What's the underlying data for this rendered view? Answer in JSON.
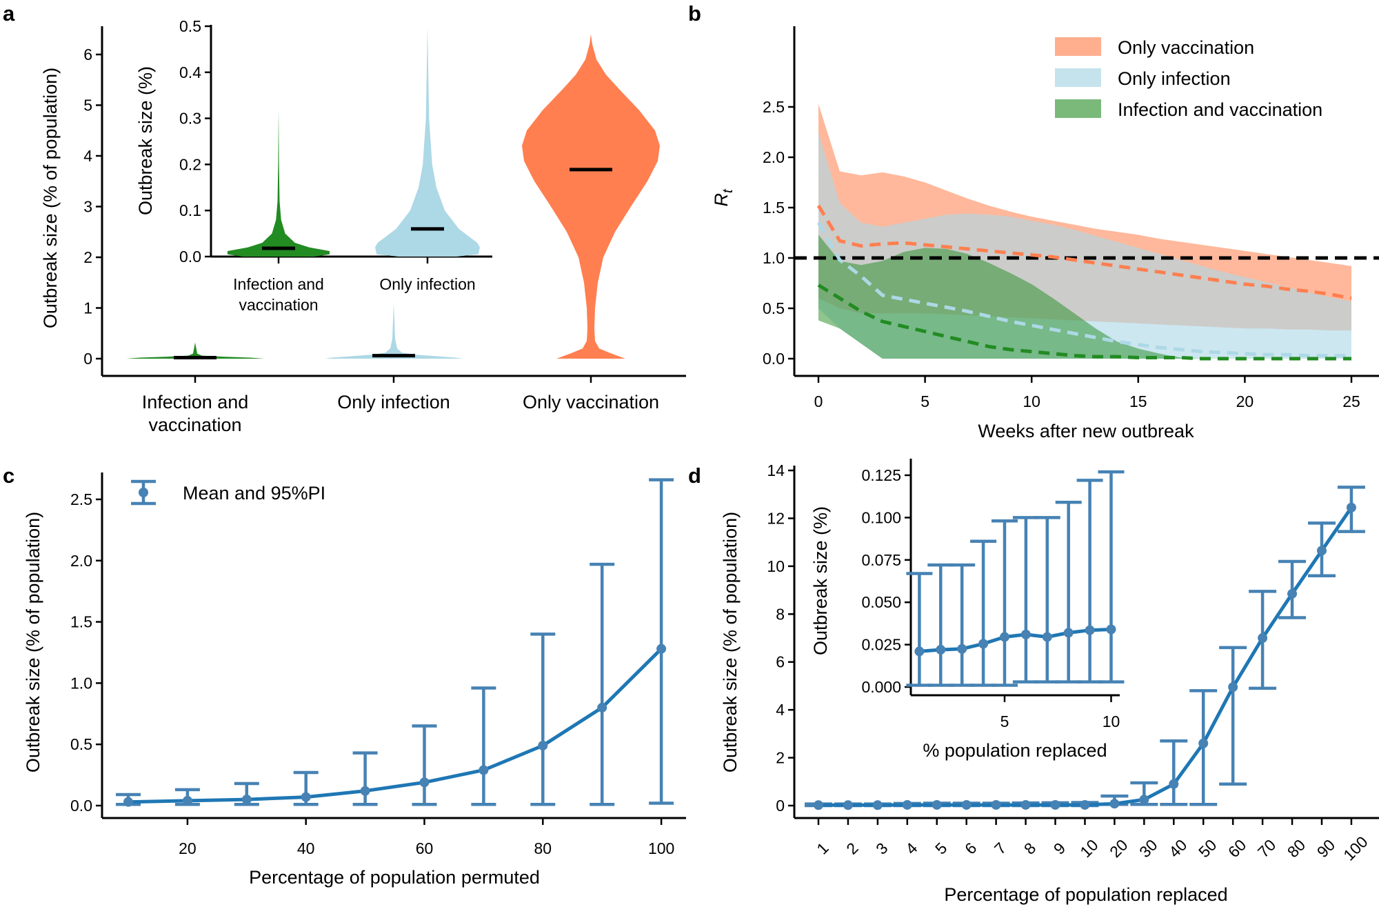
{
  "chart_data": [
    {
      "panel": "a",
      "type": "violin",
      "ylabel": "Outbreak size (% of population)",
      "categories": [
        [
          "Infection and",
          "vaccination"
        ],
        [
          "Only infection"
        ],
        [
          "Only vaccination"
        ]
      ],
      "yticks": [
        0,
        1,
        2,
        3,
        4,
        5,
        6
      ],
      "yticklabels": [
        "0",
        "1",
        "2",
        "3",
        "4",
        "5",
        "6"
      ],
      "ylim": [
        0,
        6.6
      ],
      "colors": [
        "#228b22",
        "#add8e6",
        "#ff7f50"
      ],
      "means": [
        0.02,
        0.06,
        3.73
      ],
      "density_profiles": [
        [
          [
            0,
            1
          ],
          [
            0.02,
            0.8
          ],
          [
            0.04,
            0.4
          ],
          [
            0.06,
            0.1
          ],
          [
            0.1,
            0.03
          ],
          [
            0.32,
            0
          ]
        ],
        [
          [
            0,
            1
          ],
          [
            0.02,
            0.9
          ],
          [
            0.05,
            0.6
          ],
          [
            0.08,
            0.3
          ],
          [
            0.12,
            0.12
          ],
          [
            0.2,
            0.05
          ],
          [
            0.4,
            0.02
          ],
          [
            1.1,
            0
          ]
        ],
        [
          [
            0,
            0.5
          ],
          [
            0.1,
            0.3
          ],
          [
            0.2,
            0.12
          ],
          [
            0.35,
            0.06
          ],
          [
            0.6,
            0.05
          ],
          [
            1,
            0.06
          ],
          [
            1.5,
            0.1
          ],
          [
            2,
            0.18
          ],
          [
            2.5,
            0.35
          ],
          [
            3,
            0.58
          ],
          [
            3.5,
            0.82
          ],
          [
            3.9,
            0.97
          ],
          [
            4.2,
            1
          ],
          [
            4.5,
            0.93
          ],
          [
            4.9,
            0.7
          ],
          [
            5.3,
            0.42
          ],
          [
            5.6,
            0.22
          ],
          [
            5.9,
            0.08
          ],
          [
            6.2,
            0.02
          ],
          [
            6.4,
            0
          ]
        ]
      ],
      "inset": {
        "type": "violin",
        "ylabel": "Outbreak size (%)",
        "categories": [
          [
            "Infection and",
            "vaccination"
          ],
          [
            "Only infection"
          ]
        ],
        "yticks": [
          0,
          0.1,
          0.2,
          0.3,
          0.4,
          0.5
        ],
        "yticklabels": [
          "0.0",
          "0.1",
          "0.2",
          "0.3",
          "0.4",
          "0.5"
        ],
        "ylim": [
          0,
          0.5
        ],
        "colors": [
          "#228b22",
          "#add8e6"
        ],
        "means": [
          0.018,
          0.06
        ],
        "density_profiles": [
          [
            [
              0,
              0.7
            ],
            [
              0.005,
              1
            ],
            [
              0.012,
              1
            ],
            [
              0.02,
              0.6
            ],
            [
              0.03,
              0.32
            ],
            [
              0.05,
              0.13
            ],
            [
              0.08,
              0.05
            ],
            [
              0.12,
              0.02
            ],
            [
              0.2,
              0.008
            ],
            [
              0.32,
              0
            ]
          ],
          [
            [
              0,
              0.55
            ],
            [
              0.005,
              0.97
            ],
            [
              0.02,
              1
            ],
            [
              0.03,
              0.95
            ],
            [
              0.06,
              0.6
            ],
            [
              0.1,
              0.33
            ],
            [
              0.15,
              0.17
            ],
            [
              0.2,
              0.09
            ],
            [
              0.3,
              0.03
            ],
            [
              0.5,
              0
            ]
          ]
        ]
      }
    },
    {
      "panel": "b",
      "type": "area",
      "xlabel": "Weeks after new outbreak",
      "ylabel": "R",
      "ylabel_sub": "t",
      "xticks": [
        0,
        5,
        10,
        15,
        20,
        25
      ],
      "xticklabels": [
        "0",
        "5",
        "10",
        "15",
        "20",
        "25"
      ],
      "yticks": [
        0,
        0.5,
        1,
        1.5,
        2,
        2.5
      ],
      "yticklabels": [
        "0.0",
        "0.5",
        "1.0",
        "1.5",
        "2.0",
        "2.5"
      ],
      "xlim": [
        -1.5,
        26.5
      ],
      "ylim": [
        -0.1,
        2.6
      ],
      "reference_line": 1.0,
      "legend_position": "top-right",
      "x": [
        0,
        1,
        2,
        3,
        4,
        5,
        6,
        7,
        8,
        9,
        10,
        11,
        12,
        13,
        14,
        15,
        16,
        17,
        18,
        19,
        20,
        21,
        22,
        23,
        24,
        25
      ],
      "series": [
        {
          "name": "Only vaccination",
          "color": "#ffa07a",
          "line_color": "#ff7f50",
          "mean": [
            1.52,
            1.17,
            1.12,
            1.14,
            1.15,
            1.13,
            1.11,
            1.09,
            1.07,
            1.05,
            1.03,
            1.01,
            0.98,
            0.95,
            0.92,
            0.89,
            0.86,
            0.83,
            0.8,
            0.77,
            0.74,
            0.72,
            0.69,
            0.67,
            0.64,
            0.6
          ],
          "upper": [
            2.53,
            1.86,
            1.82,
            1.85,
            1.81,
            1.75,
            1.67,
            1.59,
            1.52,
            1.46,
            1.41,
            1.37,
            1.33,
            1.29,
            1.26,
            1.23,
            1.19,
            1.16,
            1.13,
            1.1,
            1.07,
            1.04,
            1.01,
            0.98,
            0.95,
            0.92
          ],
          "lower": [
            0.6,
            0.5,
            0.45,
            0.45,
            0.45,
            0.45,
            0.44,
            0.43,
            0.42,
            0.41,
            0.4,
            0.39,
            0.38,
            0.37,
            0.36,
            0.35,
            0.34,
            0.33,
            0.32,
            0.31,
            0.3,
            0.3,
            0.29,
            0.29,
            0.28,
            0.28
          ]
        },
        {
          "name": "Only infection",
          "color": "#add8e6",
          "line_color": "#add8e6",
          "mean": [
            1.35,
            0.98,
            0.82,
            0.63,
            0.59,
            0.55,
            0.51,
            0.47,
            0.42,
            0.37,
            0.33,
            0.29,
            0.25,
            0.21,
            0.17,
            0.14,
            0.11,
            0.09,
            0.07,
            0.06,
            0.05,
            0.04,
            0.04,
            0.03,
            0.03,
            0.03
          ],
          "upper": [
            2.25,
            1.55,
            1.35,
            1.31,
            1.35,
            1.39,
            1.43,
            1.44,
            1.43,
            1.41,
            1.37,
            1.33,
            1.28,
            1.22,
            1.16,
            1.1,
            1.04,
            0.98,
            0.92,
            0.86,
            0.81,
            0.76,
            0.71,
            0.66,
            0.61,
            0.57
          ],
          "lower": [
            0.5,
            0.3,
            0.15,
            0,
            0,
            0,
            0,
            0,
            0,
            0,
            0,
            0,
            0,
            0,
            0,
            0,
            0,
            0,
            0,
            0,
            0,
            0,
            0,
            0,
            0,
            0
          ]
        },
        {
          "name": "Infection and vaccination",
          "color": "#228b22",
          "line_color": "#228b22",
          "mean": [
            0.73,
            0.6,
            0.47,
            0.37,
            0.32,
            0.27,
            0.22,
            0.17,
            0.12,
            0.09,
            0.07,
            0.05,
            0.03,
            0.02,
            0.02,
            0.01,
            0.01,
            0.01,
            0,
            0,
            0,
            0,
            0,
            0,
            0,
            0
          ],
          "upper": [
            1.23,
            0.97,
            0.93,
            0.97,
            1.06,
            1.1,
            1.09,
            1.04,
            0.95,
            0.85,
            0.74,
            0.6,
            0.45,
            0.3,
            0.17,
            0.1,
            0.05,
            0.01,
            0,
            0,
            0,
            0,
            0,
            0,
            0,
            0
          ],
          "lower": [
            0.38,
            0.3,
            0.15,
            0,
            0,
            0,
            0,
            0,
            0,
            0,
            0,
            0,
            0,
            0,
            0,
            0,
            0,
            0,
            0,
            0,
            0,
            0,
            0,
            0,
            0,
            0
          ]
        }
      ]
    },
    {
      "panel": "c",
      "type": "line",
      "xlabel": "Percentage of population permuted",
      "ylabel": "Outbreak size (% of population)",
      "legend": "Mean and 95%PI",
      "legend_position": "top-left",
      "color": "#4682b4",
      "line_color": "#1f77b4",
      "xticks": [
        20,
        40,
        60,
        80,
        100
      ],
      "xticklabels": [
        "20",
        "40",
        "60",
        "80",
        "100"
      ],
      "yticks": [
        0,
        0.5,
        1,
        1.5,
        2,
        2.5
      ],
      "yticklabels": [
        "0.0",
        "0.5",
        "1.0",
        "1.5",
        "2.0",
        "2.5"
      ],
      "x": [
        10,
        20,
        30,
        40,
        50,
        60,
        70,
        80,
        90,
        100
      ],
      "mean": [
        0.03,
        0.04,
        0.05,
        0.07,
        0.12,
        0.19,
        0.29,
        0.49,
        0.8,
        1.28
      ],
      "upper": [
        0.09,
        0.13,
        0.18,
        0.27,
        0.43,
        0.65,
        0.96,
        1.4,
        1.97,
        2.66
      ],
      "lower": [
        0.01,
        0.01,
        0.01,
        0.01,
        0.01,
        0.01,
        0.01,
        0.01,
        0.01,
        0.02
      ]
    },
    {
      "panel": "d",
      "type": "line",
      "xlabel": "Percentage of population replaced",
      "ylabel": "Outbreak size (% of population)",
      "color": "#4682b4",
      "line_color": "#1f77b4",
      "categories": [
        "1",
        "2",
        "3",
        "4",
        "5",
        "6",
        "7",
        "8",
        "9",
        "10",
        "20",
        "30",
        "40",
        "50",
        "60",
        "70",
        "80",
        "90",
        "100"
      ],
      "yticks": [
        0,
        2,
        4,
        6,
        8,
        10,
        12,
        14
      ],
      "yticklabels": [
        "0",
        "2",
        "4",
        "6",
        "8",
        "10",
        "12",
        "14"
      ],
      "mean": [
        0.02,
        0.02,
        0.02,
        0.03,
        0.03,
        0.03,
        0.03,
        0.03,
        0.03,
        0.03,
        0.08,
        0.25,
        0.9,
        2.6,
        4.95,
        7.0,
        8.85,
        10.65,
        12.45
      ],
      "upper": [
        0.07,
        0.07,
        0.07,
        0.09,
        0.1,
        0.1,
        0.1,
        0.11,
        0.12,
        0.13,
        0.4,
        0.95,
        2.7,
        4.8,
        6.6,
        8.95,
        10.2,
        11.8,
        13.3
      ],
      "lower": [
        0,
        0,
        0,
        0,
        0,
        0,
        0,
        0,
        0,
        0,
        0.05,
        0.05,
        0.05,
        0.05,
        0.9,
        4.9,
        7.85,
        9.6,
        11.45
      ],
      "inset": {
        "xlabel": "% population replaced",
        "ylabel": "Outbreak size (%)",
        "xticks": [
          5,
          10
        ],
        "xticklabels": [
          "5",
          "10"
        ],
        "yticks": [
          0,
          0.025,
          0.05,
          0.075,
          0.1,
          0.125
        ],
        "yticklabels": [
          "0.000",
          "0.025",
          "0.050",
          "0.075",
          "0.100",
          "0.125"
        ],
        "x": [
          1,
          2,
          3,
          4,
          5,
          6,
          7,
          8,
          9,
          10
        ],
        "mean": [
          0.021,
          0.022,
          0.0225,
          0.0255,
          0.0295,
          0.031,
          0.0295,
          0.032,
          0.0335,
          0.034
        ],
        "upper": [
          0.067,
          0.072,
          0.072,
          0.086,
          0.098,
          0.1,
          0.1,
          0.109,
          0.122,
          0.127
        ],
        "lower": [
          0.001,
          0.001,
          0.001,
          0.001,
          0.001,
          0.003,
          0.003,
          0.003,
          0.003,
          0.003
        ]
      }
    }
  ]
}
